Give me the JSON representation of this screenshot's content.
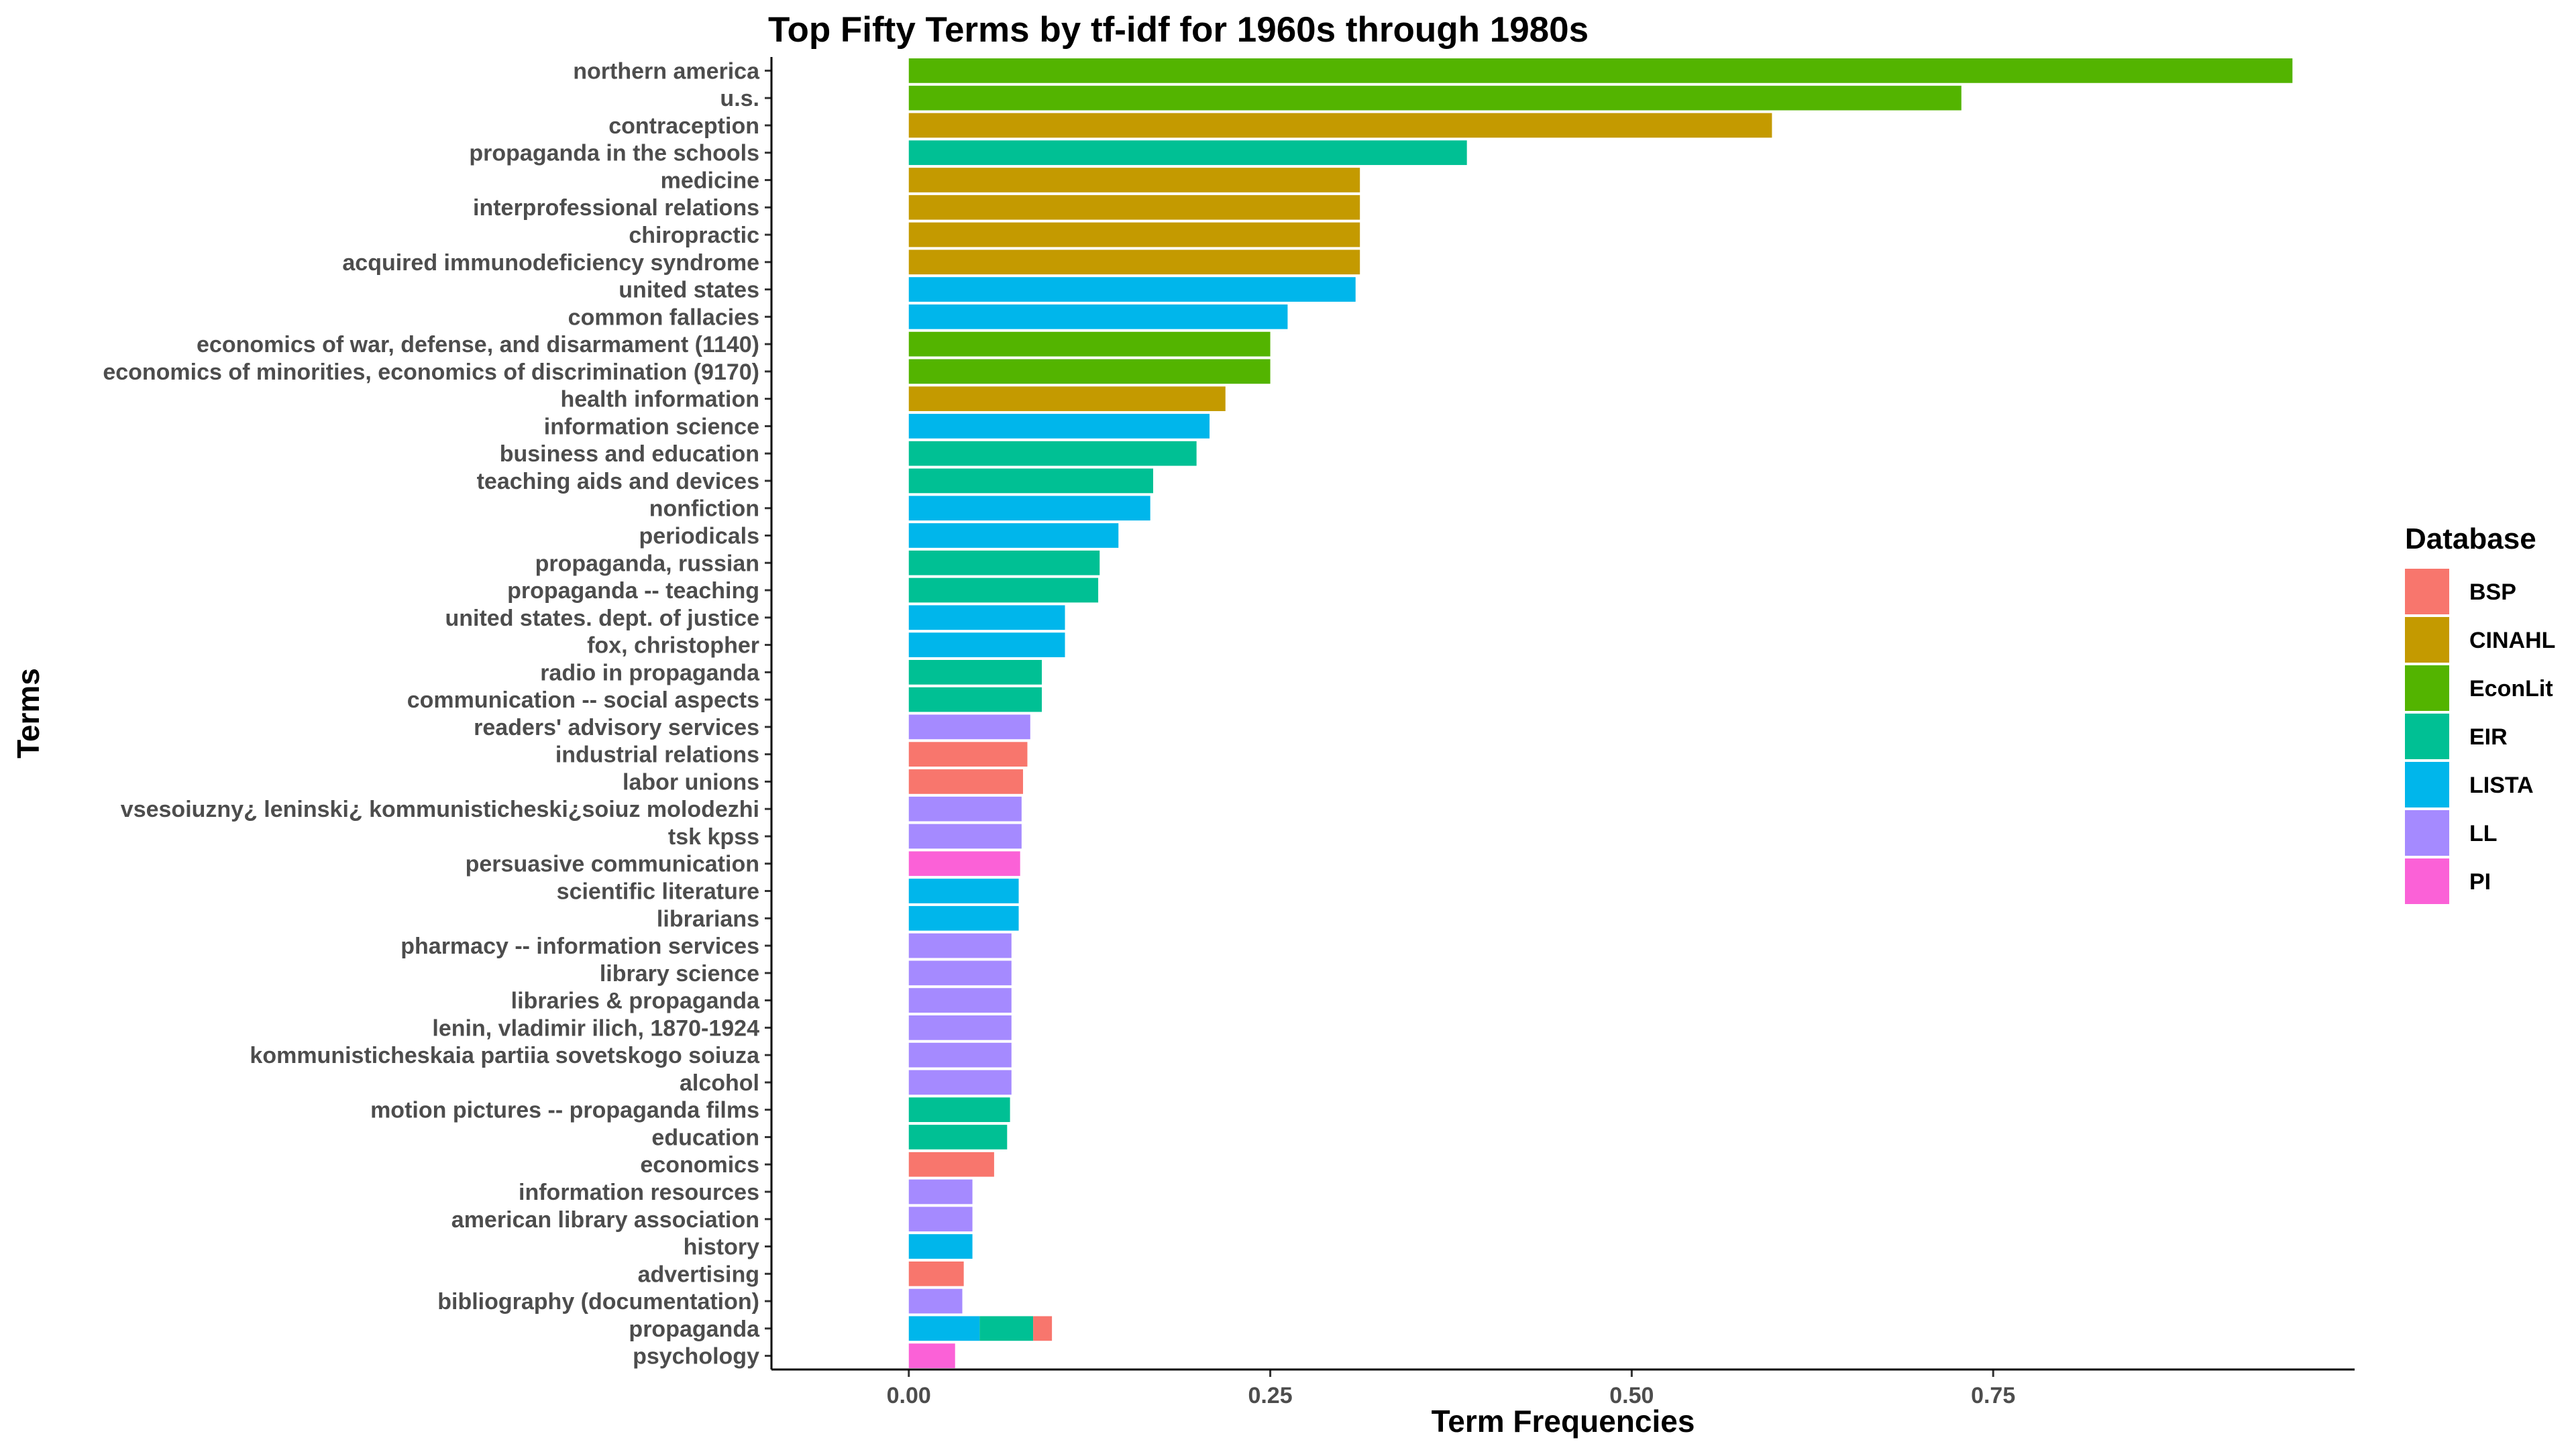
{
  "chart_data": {
    "type": "bar",
    "orientation": "horizontal",
    "stacked": true,
    "title": "Top Fifty Terms by tf-idf for 1960s through 1980s",
    "xlabel": "Term Frequencies",
    "ylabel": "Terms",
    "xlim": [
      -0.095,
      2.0
    ],
    "xticks": [
      0.0,
      0.25,
      0.5,
      0.75
    ],
    "xtick_labels": [
      "0.00",
      "0.25",
      "0.50",
      "0.75"
    ],
    "grid": false,
    "legend": {
      "title": "Database",
      "position": "right",
      "entries": [
        {
          "name": "BSP",
          "color": "#F8766D"
        },
        {
          "name": "CINAHL",
          "color": "#C49A00"
        },
        {
          "name": "EconLit",
          "color": "#53B400"
        },
        {
          "name": "EIR",
          "color": "#00C094"
        },
        {
          "name": "LISTA",
          "color": "#00B6EB"
        },
        {
          "name": "LL",
          "color": "#A58AFF"
        },
        {
          "name": "PI",
          "color": "#FB61D7"
        }
      ]
    },
    "bars": [
      {
        "term": "northern america",
        "segments": [
          {
            "db": "EconLit",
            "value": 0.957
          }
        ]
      },
      {
        "term": "u.s.",
        "segments": [
          {
            "db": "EconLit",
            "value": 0.728
          }
        ]
      },
      {
        "term": "contraception",
        "segments": [
          {
            "db": "CINAHL",
            "value": 0.597
          }
        ]
      },
      {
        "term": "propaganda in the schools",
        "segments": [
          {
            "db": "EIR",
            "value": 0.386
          }
        ]
      },
      {
        "term": "medicine",
        "segments": [
          {
            "db": "CINAHL",
            "value": 0.312
          }
        ]
      },
      {
        "term": "interprofessional relations",
        "segments": [
          {
            "db": "CINAHL",
            "value": 0.312
          }
        ]
      },
      {
        "term": "chiropractic",
        "segments": [
          {
            "db": "CINAHL",
            "value": 0.312
          }
        ]
      },
      {
        "term": "acquired immunodeficiency syndrome",
        "segments": [
          {
            "db": "CINAHL",
            "value": 0.312
          }
        ]
      },
      {
        "term": "united states",
        "segments": [
          {
            "db": "LISTA",
            "value": 0.309
          }
        ]
      },
      {
        "term": "common fallacies",
        "segments": [
          {
            "db": "LISTA",
            "value": 0.262
          }
        ]
      },
      {
        "term": "economics of war, defense, and disarmament (1140)",
        "segments": [
          {
            "db": "EconLit",
            "value": 0.25
          }
        ]
      },
      {
        "term": "economics of minorities, economics of discrimination (9170)",
        "segments": [
          {
            "db": "EconLit",
            "value": 0.25
          }
        ]
      },
      {
        "term": "health information",
        "segments": [
          {
            "db": "CINAHL",
            "value": 0.219
          }
        ]
      },
      {
        "term": "information science",
        "segments": [
          {
            "db": "LISTA",
            "value": 0.208
          }
        ]
      },
      {
        "term": "business and education",
        "segments": [
          {
            "db": "EIR",
            "value": 0.199
          }
        ]
      },
      {
        "term": "teaching aids and devices",
        "segments": [
          {
            "db": "EIR",
            "value": 0.169
          }
        ]
      },
      {
        "term": "nonfiction",
        "segments": [
          {
            "db": "LISTA",
            "value": 0.167
          }
        ]
      },
      {
        "term": "periodicals",
        "segments": [
          {
            "db": "LISTA",
            "value": 0.145
          }
        ]
      },
      {
        "term": "propaganda, russian",
        "segments": [
          {
            "db": "EIR",
            "value": 0.132
          }
        ]
      },
      {
        "term": "propaganda -- teaching",
        "segments": [
          {
            "db": "EIR",
            "value": 0.131
          }
        ]
      },
      {
        "term": "united states. dept. of justice",
        "segments": [
          {
            "db": "LISTA",
            "value": 0.108
          }
        ]
      },
      {
        "term": "fox, christopher",
        "segments": [
          {
            "db": "LISTA",
            "value": 0.108
          }
        ]
      },
      {
        "term": "radio in propaganda",
        "segments": [
          {
            "db": "EIR",
            "value": 0.092
          }
        ]
      },
      {
        "term": "communication -- social aspects",
        "segments": [
          {
            "db": "EIR",
            "value": 0.092
          }
        ]
      },
      {
        "term": "readers' advisory services",
        "segments": [
          {
            "db": "LL",
            "value": 0.084
          }
        ]
      },
      {
        "term": "industrial relations",
        "segments": [
          {
            "db": "BSP",
            "value": 0.082
          }
        ]
      },
      {
        "term": "labor unions",
        "segments": [
          {
            "db": "BSP",
            "value": 0.079
          }
        ]
      },
      {
        "term": "vsesoiuzny¿ leninski¿ kommunisticheski¿soiuz molodezhi",
        "segments": [
          {
            "db": "LL",
            "value": 0.078
          }
        ]
      },
      {
        "term": "tsk kpss",
        "segments": [
          {
            "db": "LL",
            "value": 0.078
          }
        ]
      },
      {
        "term": "persuasive communication",
        "segments": [
          {
            "db": "PI",
            "value": 0.077
          }
        ]
      },
      {
        "term": "scientific literature",
        "segments": [
          {
            "db": "LISTA",
            "value": 0.076
          }
        ]
      },
      {
        "term": "librarians",
        "segments": [
          {
            "db": "LISTA",
            "value": 0.076
          }
        ]
      },
      {
        "term": "pharmacy -- information services",
        "segments": [
          {
            "db": "LL",
            "value": 0.071
          }
        ]
      },
      {
        "term": "library science",
        "segments": [
          {
            "db": "LL",
            "value": 0.071
          }
        ]
      },
      {
        "term": "libraries & propaganda",
        "segments": [
          {
            "db": "LL",
            "value": 0.071
          }
        ]
      },
      {
        "term": "lenin, vladimir ilich, 1870-1924",
        "segments": [
          {
            "db": "LL",
            "value": 0.071
          }
        ]
      },
      {
        "term": "kommunisticheskaia partiia sovetskogo soiuza",
        "segments": [
          {
            "db": "LL",
            "value": 0.071
          }
        ]
      },
      {
        "term": "alcohol",
        "segments": [
          {
            "db": "LL",
            "value": 0.071
          }
        ]
      },
      {
        "term": "motion pictures -- propaganda films",
        "segments": [
          {
            "db": "EIR",
            "value": 0.07
          }
        ]
      },
      {
        "term": "education",
        "segments": [
          {
            "db": "EIR",
            "value": 0.068
          }
        ]
      },
      {
        "term": "economics",
        "segments": [
          {
            "db": "BSP",
            "value": 0.059
          }
        ]
      },
      {
        "term": "information resources",
        "segments": [
          {
            "db": "LL",
            "value": 0.044
          }
        ]
      },
      {
        "term": "american library association",
        "segments": [
          {
            "db": "LL",
            "value": 0.044
          }
        ]
      },
      {
        "term": "history",
        "segments": [
          {
            "db": "LISTA",
            "value": 0.044
          }
        ]
      },
      {
        "term": "advertising",
        "segments": [
          {
            "db": "BSP",
            "value": 0.038
          }
        ]
      },
      {
        "term": "bibliography (documentation)",
        "segments": [
          {
            "db": "LL",
            "value": 0.037
          }
        ]
      },
      {
        "term": "propaganda",
        "segments": [
          {
            "db": "LISTA",
            "value": 0.049
          },
          {
            "db": "EIR",
            "value": 0.037
          },
          {
            "db": "BSP",
            "value": 0.013
          }
        ]
      },
      {
        "term": "psychology",
        "segments": [
          {
            "db": "PI",
            "value": 0.032
          }
        ]
      }
    ]
  }
}
